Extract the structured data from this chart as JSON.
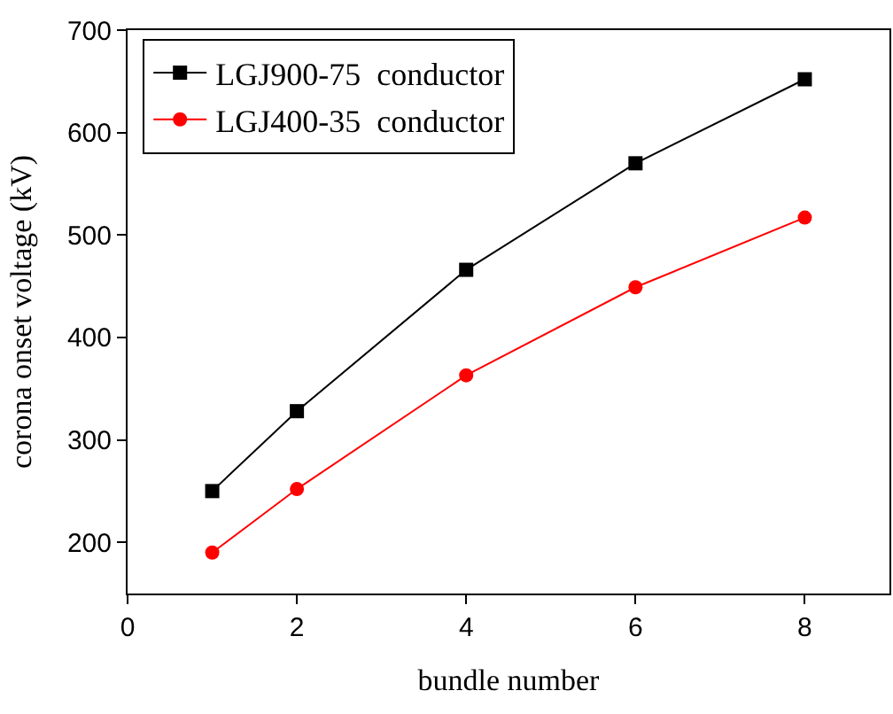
{
  "chart_data": {
    "type": "line",
    "xlabel": "bundle number",
    "ylabel": "corona onset voltage (kV)",
    "x": [
      1,
      2,
      4,
      6,
      8
    ],
    "series": [
      {
        "name": "LGJ900-75  conductor",
        "color": "#000000",
        "marker": "square",
        "values": [
          250,
          328,
          466,
          570,
          652
        ]
      },
      {
        "name": "LGJ400-35  conductor",
        "color": "#ff0000",
        "marker": "circle",
        "values": [
          190,
          252,
          363,
          449,
          517
        ]
      }
    ],
    "xlim": [
      0,
      9
    ],
    "xticks": [
      0,
      2,
      4,
      6,
      8
    ],
    "ylim": [
      150,
      700
    ],
    "yticks": [
      200,
      300,
      400,
      500,
      600,
      700
    ],
    "legend": "top left",
    "line_style": "solid"
  }
}
